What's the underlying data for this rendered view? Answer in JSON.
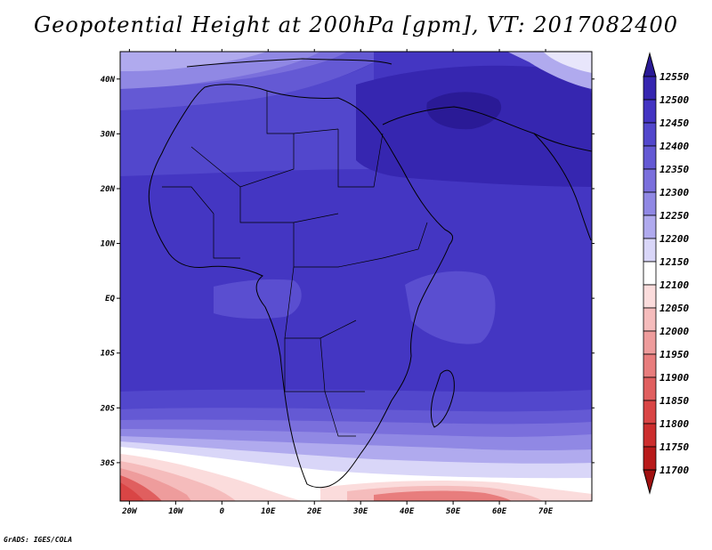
{
  "title": "Geopotential Height at 200hPa [gpm], VT: 2017082400",
  "footer": "GrADS: IGES/COLA",
  "map": {
    "projection": "latlon",
    "lon_range": [
      -22,
      80
    ],
    "lat_range": [
      -37,
      45
    ],
    "lon_ticks": [
      "20W",
      "10W",
      "0",
      "10E",
      "20E",
      "30E",
      "40E",
      "50E",
      "60E",
      "70E"
    ],
    "lat_ticks": [
      "40N",
      "30N",
      "20N",
      "10N",
      "EQ",
      "10S",
      "20S",
      "30S"
    ],
    "field": "Geopotential Height at 200hPa",
    "units": "gpm"
  },
  "colorbar": {
    "levels": [
      "12550",
      "12500",
      "12450",
      "12400",
      "12350",
      "12300",
      "12250",
      "12200",
      "12150",
      "12100",
      "12050",
      "12000",
      "11950",
      "11900",
      "11850",
      "11800",
      "11750",
      "11700"
    ],
    "colors": [
      "#2a1a96",
      "#3626b0",
      "#4334c2",
      "#5247cc",
      "#6459d4",
      "#7a6fdc",
      "#9088e4",
      "#b0aaee",
      "#d9d6f8",
      "#ffffff",
      "#fbdcdc",
      "#f5bcbc",
      "#ee9c9c",
      "#e87d7d",
      "#e05f5f",
      "#d94545",
      "#cc2e2e",
      "#b81a1a",
      "#a01010"
    ]
  }
}
